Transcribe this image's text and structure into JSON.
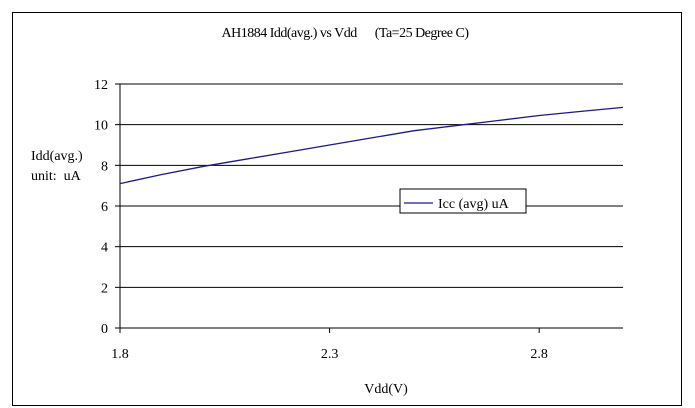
{
  "chart_data": {
    "type": "line",
    "title": "AH1884 Idd(avg.) vs Vdd      (Ta=25 Degree C)",
    "ylabel_line1": "Idd(avg.)",
    "ylabel_line2": "unit:  uA",
    "xlabel": "Vdd(V)",
    "xlim": [
      1.8,
      3.0
    ],
    "ylim": [
      0,
      12
    ],
    "x_ticks": [
      "1.8",
      "2.3",
      "2.8"
    ],
    "y_ticks": [
      "0",
      "2",
      "4",
      "6",
      "8",
      "10",
      "12"
    ],
    "grid": "horizontal",
    "legend_position": "center-right",
    "series": [
      {
        "name": "Icc (avg) uA",
        "color": "#1a1a8c",
        "x": [
          1.8,
          1.9,
          2.0,
          2.1,
          2.2,
          2.3,
          2.4,
          2.5,
          2.6,
          2.7,
          2.8,
          2.9,
          3.0
        ],
        "y": [
          7.1,
          7.55,
          7.95,
          8.3,
          8.65,
          9.0,
          9.35,
          9.7,
          9.95,
          10.2,
          10.45,
          10.65,
          10.85
        ]
      }
    ]
  }
}
